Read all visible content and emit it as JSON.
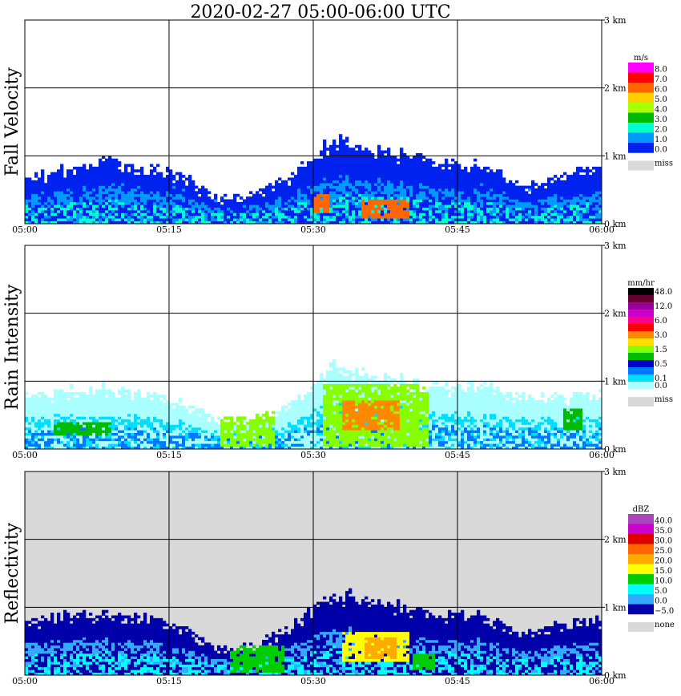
{
  "title": "2020-02-27   05:00-06:00 UTC",
  "chart_data": [
    {
      "type": "heatmap",
      "ylabel": "Fall Velocity",
      "x_ticks": [
        "05:00",
        "05:15",
        "05:30",
        "05:45",
        "06:00"
      ],
      "y_ticks": [
        "0 km",
        "1 km",
        "2 km",
        "3 km"
      ],
      "ylim_km": [
        0,
        3.0
      ],
      "grid": true,
      "background": "white",
      "top_km": [
        0.72,
        0.85,
        0.98,
        0.86,
        0.78,
        0.42,
        0.48,
        0.78,
        1.28,
        1.15,
        1.05,
        0.93,
        0.9,
        0.55,
        0.78,
        0.88
      ],
      "features": [
        {
          "t0": 30.0,
          "t1": 31.5,
          "z0": 0.15,
          "z1": 0.45,
          "color_index": 2
        },
        {
          "t0": 35.0,
          "t1": 40.0,
          "z0": 0.1,
          "z1": 0.35,
          "color_index": 2
        }
      ],
      "colorbar": {
        "unit": "m/s",
        "labels": [
          "8.0",
          "7.0",
          "6.0",
          "5.0",
          "4.0",
          "3.0",
          "2.0",
          "1.0",
          "0.0"
        ],
        "colors": [
          "#ff00ff",
          "#ff0000",
          "#ff6600",
          "#ffd000",
          "#aaff00",
          "#00bb00",
          "#00ffcc",
          "#0099ff",
          "#0022ee"
        ],
        "miss_label": "miss",
        "miss_color": "#d9d9d9"
      }
    },
    {
      "type": "heatmap",
      "ylabel": "Rain Intensity",
      "x_ticks": [
        "05:00",
        "05:15",
        "05:30",
        "05:45",
        "06:00"
      ],
      "y_ticks": [
        "0 km",
        "1 km",
        "2 km",
        "3 km"
      ],
      "ylim_km": [
        0,
        3.0
      ],
      "grid": true,
      "background": "white",
      "top_km": [
        0.82,
        0.9,
        0.95,
        0.88,
        0.75,
        0.5,
        0.55,
        0.7,
        1.25,
        1.15,
        1.05,
        0.95,
        0.98,
        0.8,
        0.82,
        0.85
      ],
      "features": [
        {
          "t0": 20.5,
          "t1": 26.0,
          "z0": 0.05,
          "z1": 0.55,
          "color_index": 8
        },
        {
          "t0": 31.0,
          "t1": 42.0,
          "z0": 0.05,
          "z1": 0.95,
          "color_index": 8
        },
        {
          "t0": 33.0,
          "t1": 39.0,
          "z0": 0.3,
          "z1": 0.7,
          "color_index": 6
        },
        {
          "t0": 3.0,
          "t1": 9.0,
          "z0": 0.2,
          "z1": 0.4,
          "color_index": 9
        },
        {
          "t0": 56.0,
          "t1": 58.0,
          "z0": 0.3,
          "z1": 0.6,
          "color_index": 9
        }
      ],
      "colorbar": {
        "unit": "mm/hr",
        "labels": [
          "48.0",
          "",
          "12.0",
          "",
          "6.0",
          "",
          "3.0",
          "",
          "1.5",
          "",
          "0.5",
          "",
          "0.1",
          "0.0"
        ],
        "colors": [
          "#000000",
          "#660033",
          "#990099",
          "#cc00cc",
          "#ff0088",
          "#ff0000",
          "#ff8800",
          "#ffdd00",
          "#88ff00",
          "#00bb00",
          "#0000cc",
          "#0077ff",
          "#00ddff",
          "#aaffff"
        ],
        "miss_label": "miss",
        "miss_color": "#d9d9d9"
      }
    },
    {
      "type": "heatmap",
      "ylabel": "Reflectivity",
      "x_ticks": [
        "05:00",
        "05:15",
        "05:30",
        "05:45",
        "06:00"
      ],
      "y_ticks": [
        "0 km",
        "1 km",
        "2 km",
        "3 km"
      ],
      "ylim_km": [
        0,
        3.0
      ],
      "grid": true,
      "background": "#d9d9d9",
      "top_km": [
        0.8,
        0.9,
        0.95,
        0.9,
        0.78,
        0.45,
        0.5,
        0.78,
        1.25,
        1.15,
        1.05,
        0.95,
        0.92,
        0.65,
        0.8,
        0.85
      ],
      "features": [
        {
          "t0": 21.5,
          "t1": 27.0,
          "z0": 0.05,
          "z1": 0.45,
          "color_index": 6
        },
        {
          "t0": 33.0,
          "t1": 40.0,
          "z0": 0.2,
          "z1": 0.65,
          "color_index": 5
        },
        {
          "t0": 35.5,
          "t1": 38.5,
          "z0": 0.25,
          "z1": 0.55,
          "color_index": 4
        },
        {
          "t0": 40.5,
          "t1": 42.5,
          "z0": 0.1,
          "z1": 0.3,
          "color_index": 6
        }
      ],
      "colorbar": {
        "unit": "dBZ",
        "labels": [
          "40.0",
          "35.0",
          "30.0",
          "25.0",
          "20.0",
          "15.0",
          "10.0",
          "5.0",
          "0.0",
          "−5.0"
        ],
        "colors": [
          "#aa44bb",
          "#cc00cc",
          "#dd0000",
          "#ff6600",
          "#ffaa00",
          "#ffff00",
          "#00cc00",
          "#00ffff",
          "#33aaff",
          "#0000aa"
        ],
        "miss_label": "none",
        "miss_color": "#d9d9d9"
      }
    }
  ]
}
